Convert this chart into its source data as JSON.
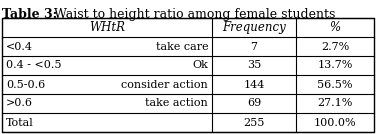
{
  "title_bold": "Table 3:",
  "title_normal": " Waist to height ratio among female students",
  "headers": [
    "WHtR",
    "Frequency",
    "%"
  ],
  "col0_parts": [
    [
      "<0.4",
      "take care"
    ],
    [
      "0.4 - <0.5",
      "Ok"
    ],
    [
      "0.5-0.6",
      "consider action"
    ],
    [
      ">0.6",
      "take action"
    ],
    [
      "Total",
      ""
    ]
  ],
  "rows_freq": [
    "7",
    "35",
    "144",
    "69",
    "255"
  ],
  "rows_pct": [
    "2.7%",
    "13.7%",
    "56.5%",
    "27.1%",
    "100.0%"
  ],
  "bg_color": "#ffffff",
  "border_color": "#000000",
  "title_fontsize": 9.0,
  "cell_fontsize": 8.0,
  "header_fontsize": 8.5
}
